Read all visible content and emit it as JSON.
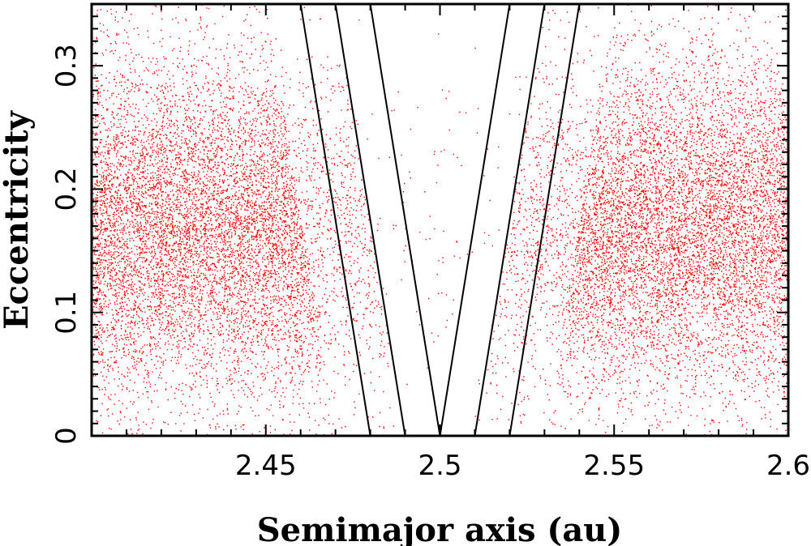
{
  "chart_data": {
    "type": "scatter",
    "title": "",
    "xlabel": "Semimajor axis (au)",
    "ylabel": "Eccentricity",
    "xlim": [
      2.4,
      2.6
    ],
    "ylim": [
      0,
      0.35
    ],
    "x_ticks": [
      "2.45",
      "2.5",
      "2.55",
      "2.6"
    ],
    "y_ticks": [
      "0",
      "0.1",
      "0.2",
      "0.3"
    ],
    "grid": false,
    "point_color": "#ff0000",
    "line_color": "#000000",
    "series": [
      {
        "kind": "points",
        "description_of_density": "dense cloud at a<2.48 and a>2.52 centred near e≈0.17, sparse inside the V-shaped gap near a=2.5",
        "left_cloud": {
          "x_range": [
            2.4,
            2.49
          ],
          "e_center": 0.17,
          "e_spread": 0.07
        },
        "right_cloud": {
          "x_range": [
            2.51,
            2.6
          ],
          "e_center": 0.17,
          "e_spread": 0.07
        },
        "gap_center_x": 2.5
      },
      {
        "kind": "lines",
        "segments": [
          {
            "x": [
              2.48,
              2.46
            ],
            "y": [
              0,
              0.35
            ]
          },
          {
            "x": [
              2.49,
              2.47
            ],
            "y": [
              0,
              0.35
            ]
          },
          {
            "x": [
              2.5,
              2.48
            ],
            "y": [
              0,
              0.35
            ]
          },
          {
            "x": [
              2.5,
              2.52
            ],
            "y": [
              0,
              0.35
            ]
          },
          {
            "x": [
              2.51,
              2.53
            ],
            "y": [
              0,
              0.35
            ]
          },
          {
            "x": [
              2.52,
              2.54
            ],
            "y": [
              0,
              0.35
            ]
          }
        ]
      }
    ]
  }
}
